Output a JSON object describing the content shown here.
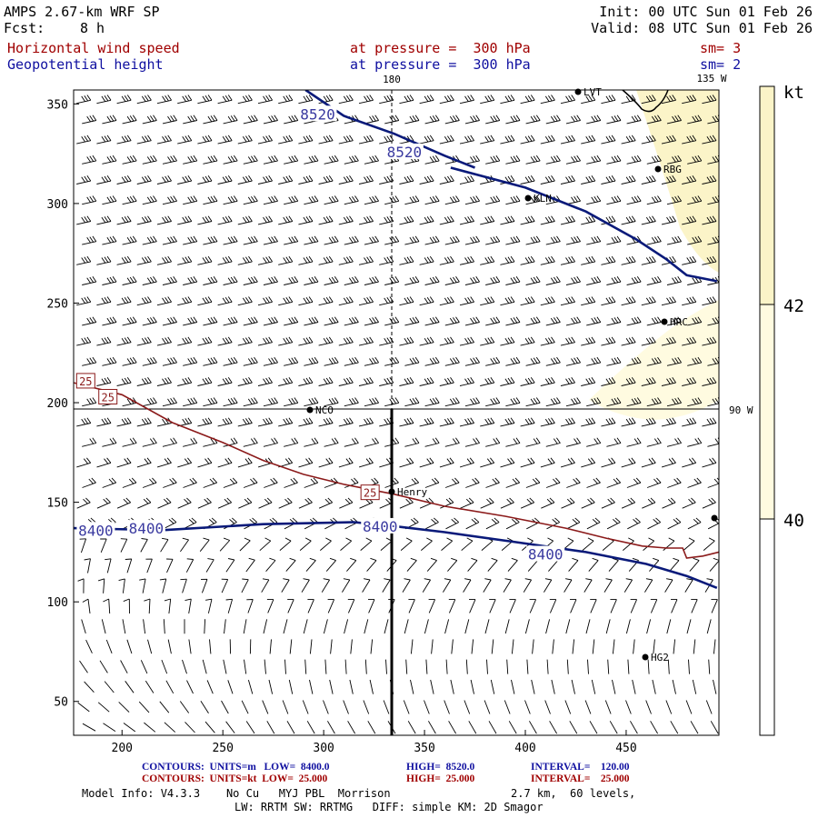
{
  "header": {
    "model": "AMPS 2.67-km WRF SP",
    "init": "Init: 00 UTC Sun 01 Feb 26",
    "fcst_label": "Fcst:",
    "fcst_value": "8 h",
    "valid": "Valid: 08 UTC Sun 01 Feb 26",
    "field1": "Horizontal wind speed",
    "field1_level": "at pressure =  300 hPa",
    "field1_sm": "sm= 3",
    "field2": "Geopotential height",
    "field2_level": "at pressure =  300 hPa",
    "field2_sm": "sm= 2"
  },
  "colors": {
    "height_contour": "#0a1a7a",
    "height_label": "#3a3aa0",
    "speed_contour": "#8b1a1a",
    "barb": "#000000",
    "shade_40_42": "#fffbe0",
    "shade_42_plus": "#fbf4c8"
  },
  "map_labels": {
    "lon_180": "180",
    "lon_135w": "135 W",
    "lon_90w": "90 W",
    "stations": [
      "LVT",
      "RBG",
      "KLN",
      "HRC",
      "NCO",
      "Henry",
      "HG2"
    ]
  },
  "colorbar": {
    "unit": "kt",
    "ticks": [
      "42",
      "40"
    ]
  },
  "footer": {
    "row1_label": "CONTOURS:  UNITS=m   LOW=  8400.0",
    "row1_high": "HIGH=  8520.0",
    "row1_interval": "INTERVAL=    120.00",
    "row2_label": "CONTOURS:  UNITS=kt  LOW=  25.000",
    "row2_high": "HIGH=  25.000",
    "row2_interval": "INTERVAL=    25.000",
    "model_info": "Model Info: V4.3.3    No Cu   MYJ PBL  Morrison",
    "grid_info": "2.7 km,  60 levels,",
    "physics": "LW: RRTM SW: RRTMG   DIFF: simple KM: 2D Smagor"
  },
  "chart_data": {
    "type": "contour",
    "title": "Horizontal wind speed (kt) and Geopotential height (m) at 300 hPa",
    "xlabel": "",
    "ylabel": "",
    "xlim": [
      176,
      496
    ],
    "ylim": [
      33,
      357
    ],
    "xticks": [
      200,
      250,
      300,
      350,
      400,
      450
    ],
    "yticks": [
      50,
      100,
      150,
      200,
      250,
      300,
      350
    ],
    "height_contours": [
      {
        "value": 8520,
        "label": "8520",
        "points": [
          [
            291,
            357
          ],
          [
            310,
            344
          ],
          [
            335,
            335
          ],
          [
            360,
            324
          ],
          [
            375,
            318
          ]
        ],
        "labels_at": [
          [
            297,
            345
          ],
          [
            340,
            326
          ]
        ]
      },
      {
        "value": 8520,
        "label": "",
        "points": [
          [
            363,
            318
          ],
          [
            400,
            308
          ],
          [
            430,
            296
          ],
          [
            455,
            282
          ],
          [
            470,
            272
          ],
          [
            480,
            264
          ],
          [
            495,
            261
          ]
        ]
      },
      {
        "value": 8400,
        "label": "8400",
        "points": [
          [
            176,
            137
          ],
          [
            220,
            136
          ],
          [
            270,
            139
          ],
          [
            315,
            140
          ],
          [
            335,
            138
          ],
          [
            360,
            135
          ],
          [
            395,
            130
          ],
          [
            430,
            125
          ],
          [
            460,
            119
          ],
          [
            480,
            113
          ],
          [
            495,
            107
          ]
        ],
        "labels_at": [
          [
            187,
            136
          ],
          [
            212,
            137
          ],
          [
            328,
            138
          ],
          [
            410,
            124
          ]
        ]
      }
    ],
    "speed_contours": [
      {
        "value": 25,
        "label": "25",
        "points": [
          [
            176,
            210
          ],
          [
            200,
            204
          ],
          [
            225,
            190
          ],
          [
            250,
            180
          ],
          [
            270,
            171
          ],
          [
            290,
            164
          ],
          [
            310,
            159
          ],
          [
            335,
            154
          ],
          [
            360,
            148
          ],
          [
            390,
            143
          ],
          [
            420,
            137
          ],
          [
            440,
            132
          ],
          [
            458,
            128
          ],
          [
            470,
            127
          ],
          [
            478,
            127
          ],
          [
            480,
            122
          ],
          [
            488,
            123
          ],
          [
            496,
            125
          ]
        ],
        "labels_at": [
          [
            182,
            211
          ],
          [
            193,
            203
          ],
          [
            323,
            155
          ]
        ]
      }
    ],
    "speed_shading": [
      {
        "range": "40-42 kt",
        "region": "right-edge"
      },
      {
        "range": ">42 kt",
        "region": "upper-right"
      }
    ]
  }
}
